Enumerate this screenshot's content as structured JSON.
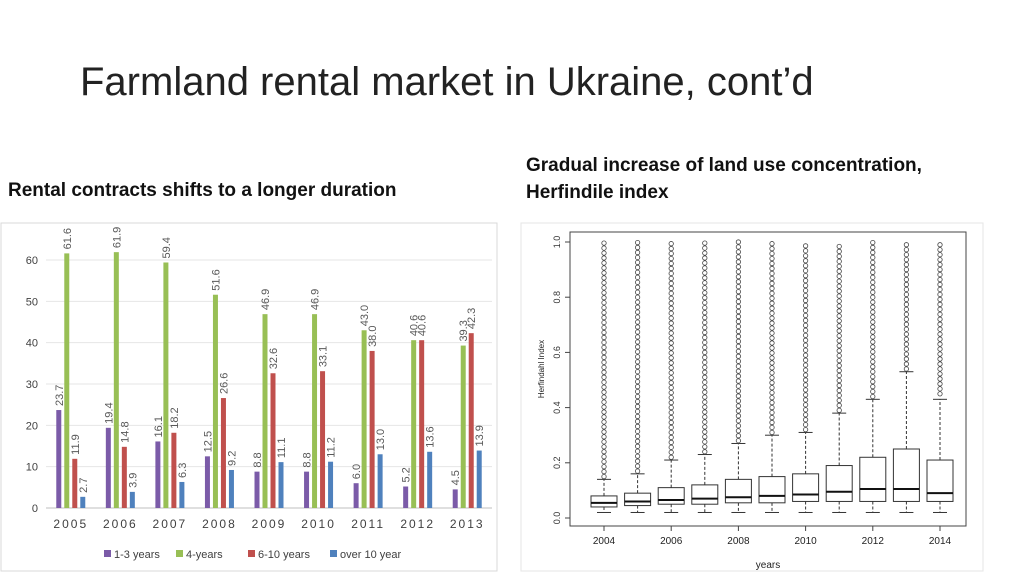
{
  "slide": {
    "title": "Farmland rental market in Ukraine, cont’d",
    "left_heading": "Rental contracts shifts to a longer duration",
    "right_heading_line1": "Gradual increase of land use concentration,",
    "right_heading_line2": "Herfindile index"
  },
  "chart_data": [
    {
      "type": "bar",
      "categories": [
        "2005",
        "2006",
        "2007",
        "2008",
        "2009",
        "2010",
        "2011",
        "2012",
        "2013"
      ],
      "series": [
        {
          "name": "1-3 years",
          "color": "#7b5ba8",
          "values": [
            23.7,
            19.4,
            16.1,
            12.5,
            8.8,
            8.8,
            6.0,
            5.2,
            4.5
          ]
        },
        {
          "name": "4-years",
          "color": "#98bf55",
          "values": [
            61.6,
            61.9,
            59.4,
            51.6,
            46.9,
            46.9,
            43.0,
            40.6,
            39.3
          ]
        },
        {
          "name": "6-10 years",
          "color": "#c0504d",
          "values": [
            11.9,
            14.8,
            18.2,
            26.6,
            32.6,
            33.1,
            38.0,
            40.6,
            42.3
          ]
        },
        {
          "name": "over 10 year",
          "color": "#4f81bd",
          "values": [
            2.7,
            3.9,
            6.3,
            9.2,
            11.1,
            11.2,
            13.0,
            13.6,
            13.9
          ]
        }
      ],
      "value_labels": [
        [
          "23.7",
          "19.4",
          "16.1",
          "12.5",
          "8.8",
          "8.8",
          "6.0",
          "5.2",
          "4.5"
        ],
        [
          "61.6",
          "61.9",
          "59.4",
          "51.6",
          "46.9",
          "46.9",
          "43.0",
          "40.6",
          "39.3"
        ],
        [
          "11.9",
          "14.8",
          "18.2",
          "26.6",
          "32.6",
          "33.1",
          "38.0",
          "40.6",
          "42.3"
        ],
        [
          "2.7",
          "3.9",
          "6.3",
          "9.2",
          "11.1",
          "11.2",
          "13.0",
          "13.6",
          "13.9"
        ]
      ],
      "yticks": [
        "0",
        "10",
        "20",
        "30",
        "40",
        "50",
        "60"
      ],
      "ylim": [
        0,
        65
      ],
      "legend_position": "bottom",
      "grid": "horizontal"
    },
    {
      "type": "boxplot",
      "x": [
        2004,
        2005,
        2006,
        2007,
        2008,
        2009,
        2010,
        2011,
        2012,
        2013,
        2014
      ],
      "xticks": [
        "2004",
        "2006",
        "2008",
        "2010",
        "2012",
        "2014"
      ],
      "yticks": [
        "0.0",
        "0.2",
        "0.4",
        "0.6",
        "0.8",
        "1.0"
      ],
      "xlabel": "years",
      "ylabel": "Herfindahl Index",
      "ylim": [
        0,
        1.0
      ],
      "boxes": [
        {
          "min": 0.02,
          "q1": 0.04,
          "median": 0.055,
          "q3": 0.08,
          "max": 0.14,
          "outliers_from": 0.15
        },
        {
          "min": 0.02,
          "q1": 0.045,
          "median": 0.06,
          "q3": 0.09,
          "max": 0.16,
          "outliers_from": 0.17
        },
        {
          "min": 0.02,
          "q1": 0.05,
          "median": 0.065,
          "q3": 0.11,
          "max": 0.21,
          "outliers_from": 0.22
        },
        {
          "min": 0.02,
          "q1": 0.05,
          "median": 0.07,
          "q3": 0.12,
          "max": 0.23,
          "outliers_from": 0.24
        },
        {
          "min": 0.02,
          "q1": 0.055,
          "median": 0.075,
          "q3": 0.14,
          "max": 0.27,
          "outliers_from": 0.28
        },
        {
          "min": 0.02,
          "q1": 0.055,
          "median": 0.08,
          "q3": 0.15,
          "max": 0.3,
          "outliers_from": 0.31
        },
        {
          "min": 0.02,
          "q1": 0.06,
          "median": 0.085,
          "q3": 0.16,
          "max": 0.31,
          "outliers_from": 0.32
        },
        {
          "min": 0.02,
          "q1": 0.06,
          "median": 0.095,
          "q3": 0.19,
          "max": 0.38,
          "outliers_from": 0.39
        },
        {
          "min": 0.02,
          "q1": 0.06,
          "median": 0.105,
          "q3": 0.22,
          "max": 0.43,
          "outliers_from": 0.44
        },
        {
          "min": 0.02,
          "q1": 0.06,
          "median": 0.105,
          "q3": 0.25,
          "max": 0.53,
          "outliers_from": 0.54
        },
        {
          "min": 0.02,
          "q1": 0.06,
          "median": 0.09,
          "q3": 0.21,
          "max": 0.43,
          "outliers_from": 0.45
        }
      ]
    }
  ]
}
